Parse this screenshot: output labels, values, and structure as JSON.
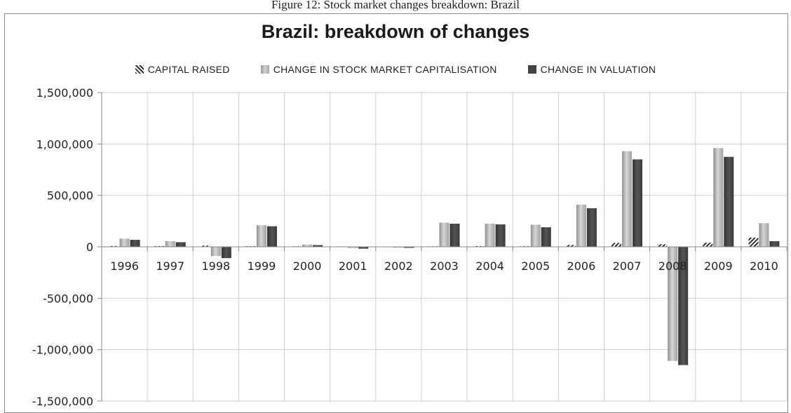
{
  "figure_caption": "Figure 12: Stock market changes breakdown: Brazil",
  "chart_data": {
    "type": "bar",
    "title": "Brazil: breakdown of changes",
    "xlabel": "",
    "ylabel": "",
    "categories": [
      "1996",
      "1997",
      "1998",
      "1999",
      "2000",
      "2001",
      "2002",
      "2003",
      "2004",
      "2005",
      "2006",
      "2007",
      "2008",
      "2009",
      "2010"
    ],
    "series": [
      {
        "name": "Capital raised",
        "pattern": "diagonal-hatch",
        "color": "#3a3a3a",
        "values": [
          8000,
          7000,
          12000,
          6000,
          5000,
          4000,
          3000,
          5000,
          7000,
          6000,
          18000,
          38000,
          25000,
          40000,
          90000
        ]
      },
      {
        "name": "Change in stock market capitalisation",
        "color": "#b3b3b3",
        "values": [
          80000,
          55000,
          -90000,
          210000,
          22000,
          -12000,
          -8000,
          235000,
          225000,
          215000,
          410000,
          930000,
          -1110000,
          960000,
          230000
        ]
      },
      {
        "name": "Change in valuation",
        "color": "#4a4a4a",
        "values": [
          68000,
          45000,
          -110000,
          200000,
          17000,
          -18000,
          -10000,
          225000,
          218000,
          190000,
          375000,
          850000,
          -1150000,
          875000,
          55000
        ]
      }
    ],
    "ylim": [
      -1500000,
      1500000
    ],
    "yticks": [
      -1500000,
      -1000000,
      -500000,
      0,
      500000,
      1000000,
      1500000
    ],
    "ytick_labels": [
      "-1,500,000",
      "-1,000,000",
      "-500,000",
      "0",
      "500,000",
      "1,000,000",
      "1,500,000"
    ],
    "grid": {
      "horizontal": true,
      "vertical": true
    },
    "legend_position": "top-center"
  }
}
